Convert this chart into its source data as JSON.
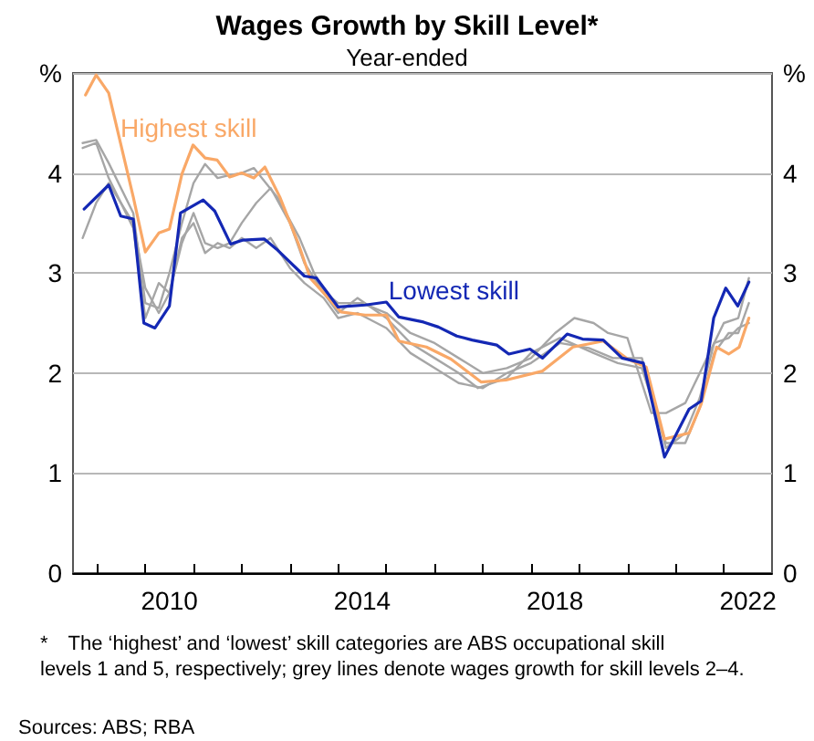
{
  "chart_data": {
    "type": "line",
    "title": "Wages Growth by Skill Level*",
    "subtitle": "Year-ended",
    "xlim": [
      2008.5,
      2023
    ],
    "xticks": [
      {
        "value": 2009,
        "label": null
      },
      {
        "value": 2010,
        "label": null
      },
      {
        "value": 2010.5,
        "label": "2010"
      },
      {
        "value": 2011,
        "label": null
      },
      {
        "value": 2012,
        "label": null
      },
      {
        "value": 2013,
        "label": null
      },
      {
        "value": 2014,
        "label": null
      },
      {
        "value": 2014.5,
        "label": "2014"
      },
      {
        "value": 2015,
        "label": null
      },
      {
        "value": 2016,
        "label": null
      },
      {
        "value": 2017,
        "label": null
      },
      {
        "value": 2018,
        "label": null
      },
      {
        "value": 2018.5,
        "label": "2018"
      },
      {
        "value": 2019,
        "label": null
      },
      {
        "value": 2020,
        "label": null
      },
      {
        "value": 2021,
        "label": null
      },
      {
        "value": 2022,
        "label": null
      },
      {
        "value": 2022.5,
        "label": "2022"
      }
    ],
    "ylim": [
      0,
      5
    ],
    "yticks": [
      0,
      1,
      2,
      3,
      4,
      {
        "value": 5,
        "label": "%"
      }
    ],
    "y2lim": [
      0,
      5
    ],
    "y2ticks": [
      0,
      1,
      2,
      3,
      4,
      {
        "value": 5,
        "label": "%"
      }
    ],
    "grid": "y",
    "legend": false,
    "marker": "none",
    "line_style": "solid",
    "series": [
      {
        "color": "#a6a6a6",
        "x": [
          2008.7,
          2008.98,
          2009.24,
          2009.75,
          2010.0,
          2010.28,
          2010.5,
          2010.76,
          2011.0,
          2011.24,
          2011.5,
          2011.75,
          2012.0,
          2012.25,
          2012.75,
          2013.2,
          2013.5,
          2013.74,
          2014.0,
          2014.5,
          2015.0,
          2015.5,
          2016.0,
          2016.5,
          2017.0,
          2017.5,
          2018.0,
          2018.5,
          2018.9,
          2019.3,
          2019.6,
          2020.0,
          2020.5,
          2020.8,
          2021.2,
          2021.7,
          2022.0,
          2022.3,
          2022.52
        ],
        "values": [
          4.3,
          4.33,
          4.1,
          3.6,
          2.7,
          2.65,
          3.0,
          3.5,
          3.9,
          4.09,
          3.95,
          3.98,
          4.0,
          4.05,
          3.75,
          3.35,
          3.0,
          2.8,
          2.7,
          2.7,
          2.6,
          2.4,
          2.3,
          2.15,
          2.0,
          2.05,
          2.15,
          2.4,
          2.55,
          2.5,
          2.4,
          2.35,
          1.6,
          1.6,
          1.7,
          2.2,
          2.5,
          2.55,
          2.95
        ]
      },
      {
        "color": "#a6a6a6",
        "x": [
          2008.7,
          2008.98,
          2009.24,
          2009.75,
          2010.0,
          2010.28,
          2010.5,
          2010.76,
          2011.0,
          2011.24,
          2011.5,
          2011.75,
          2012.0,
          2012.3,
          2012.6,
          2013.0,
          2013.3,
          2013.7,
          2014.0,
          2014.4,
          2015.0,
          2015.5,
          2016.0,
          2016.5,
          2016.9,
          2017.5,
          2018.0,
          2018.6,
          2019.3,
          2019.8,
          2020.3,
          2020.8,
          2021.2,
          2021.5,
          2021.8,
          2022.1,
          2022.3,
          2022.52
        ],
        "values": [
          3.35,
          3.7,
          3.9,
          3.5,
          2.85,
          2.6,
          2.8,
          3.3,
          3.6,
          3.3,
          3.25,
          3.3,
          3.5,
          3.7,
          3.85,
          3.5,
          3.1,
          2.8,
          2.6,
          2.75,
          2.55,
          2.3,
          2.15,
          2.0,
          1.85,
          1.95,
          2.2,
          2.35,
          2.2,
          2.1,
          2.05,
          1.3,
          1.3,
          1.65,
          2.2,
          2.4,
          2.4,
          2.7
        ]
      },
      {
        "color": "#a6a6a6",
        "x": [
          2008.7,
          2008.98,
          2009.24,
          2009.75,
          2010.0,
          2010.28,
          2010.5,
          2010.76,
          2011.0,
          2011.24,
          2011.5,
          2011.75,
          2012.0,
          2012.3,
          2012.6,
          2013.0,
          2013.3,
          2013.7,
          2014.0,
          2014.4,
          2015.0,
          2015.5,
          2016.0,
          2016.5,
          2017.0,
          2017.5,
          2018.0,
          2018.6,
          2019.2,
          2019.7,
          2020.3,
          2020.8,
          2021.2,
          2021.5,
          2021.8,
          2022.1,
          2022.3,
          2022.52
        ],
        "values": [
          4.25,
          4.3,
          3.95,
          3.45,
          2.55,
          2.9,
          2.8,
          3.35,
          3.5,
          3.2,
          3.3,
          3.25,
          3.35,
          3.25,
          3.35,
          3.05,
          2.9,
          2.75,
          2.55,
          2.6,
          2.45,
          2.2,
          2.05,
          1.9,
          1.85,
          2.0,
          2.1,
          2.3,
          2.25,
          2.15,
          2.15,
          1.25,
          1.4,
          1.75,
          2.3,
          2.35,
          2.45,
          2.5
        ]
      },
      {
        "name": "Highest skill",
        "color": "#f9a867",
        "x": [
          2008.76,
          2008.98,
          2009.24,
          2009.75,
          2010.0,
          2010.28,
          2010.5,
          2010.76,
          2010.99,
          2011.24,
          2011.49,
          2011.75,
          2012.0,
          2012.25,
          2012.48,
          2012.79,
          2013.17,
          2013.42,
          2013.74,
          2014.06,
          2014.56,
          2015.0,
          2015.26,
          2015.83,
          2016.34,
          2016.97,
          2017.48,
          2018.24,
          2018.87,
          2019.5,
          2020.01,
          2020.39,
          2020.77,
          2021.28,
          2021.53,
          2021.85,
          2022.1,
          2022.32,
          2022.52
        ],
        "values": [
          4.78,
          4.98,
          4.8,
          3.76,
          3.21,
          3.4,
          3.44,
          3.99,
          4.28,
          4.15,
          4.13,
          3.96,
          4.0,
          3.95,
          4.06,
          3.76,
          3.3,
          2.95,
          2.78,
          2.61,
          2.58,
          2.58,
          2.32,
          2.26,
          2.14,
          1.91,
          1.93,
          2.02,
          2.26,
          2.32,
          2.14,
          2.06,
          1.34,
          1.4,
          1.69,
          2.26,
          2.19,
          2.26,
          2.55
        ]
      },
      {
        "name": "Lowest skill",
        "color": "#1428b4",
        "x": [
          2008.73,
          2009.24,
          2009.49,
          2009.75,
          2009.97,
          2010.2,
          2010.5,
          2010.73,
          2011.2,
          2011.44,
          2011.77,
          2012.03,
          2012.47,
          2012.72,
          2013.3,
          2013.55,
          2014.0,
          2014.56,
          2015.0,
          2015.26,
          2015.77,
          2016.08,
          2016.46,
          2016.78,
          2017.29,
          2017.54,
          2017.98,
          2018.24,
          2018.75,
          2019.07,
          2019.5,
          2019.89,
          2020.33,
          2020.77,
          2021.28,
          2021.53,
          2021.79,
          2022.04,
          2022.29,
          2022.52
        ],
        "values": [
          3.64,
          3.88,
          3.57,
          3.54,
          2.5,
          2.45,
          2.67,
          3.6,
          3.73,
          3.62,
          3.29,
          3.33,
          3.34,
          3.24,
          2.97,
          2.95,
          2.66,
          2.68,
          2.71,
          2.56,
          2.51,
          2.46,
          2.37,
          2.33,
          2.28,
          2.19,
          2.24,
          2.15,
          2.39,
          2.34,
          2.33,
          2.15,
          2.1,
          1.16,
          1.64,
          1.72,
          2.55,
          2.85,
          2.67,
          2.91
        ]
      }
    ],
    "annotations": [
      "* The ‘highest’ and ‘lowest’ skill categories are ABS occupational skill levels 1 and 5, respectively; grey lines denote wages growth for skill levels 2–4.",
      "Sources: ABS; RBA"
    ]
  }
}
